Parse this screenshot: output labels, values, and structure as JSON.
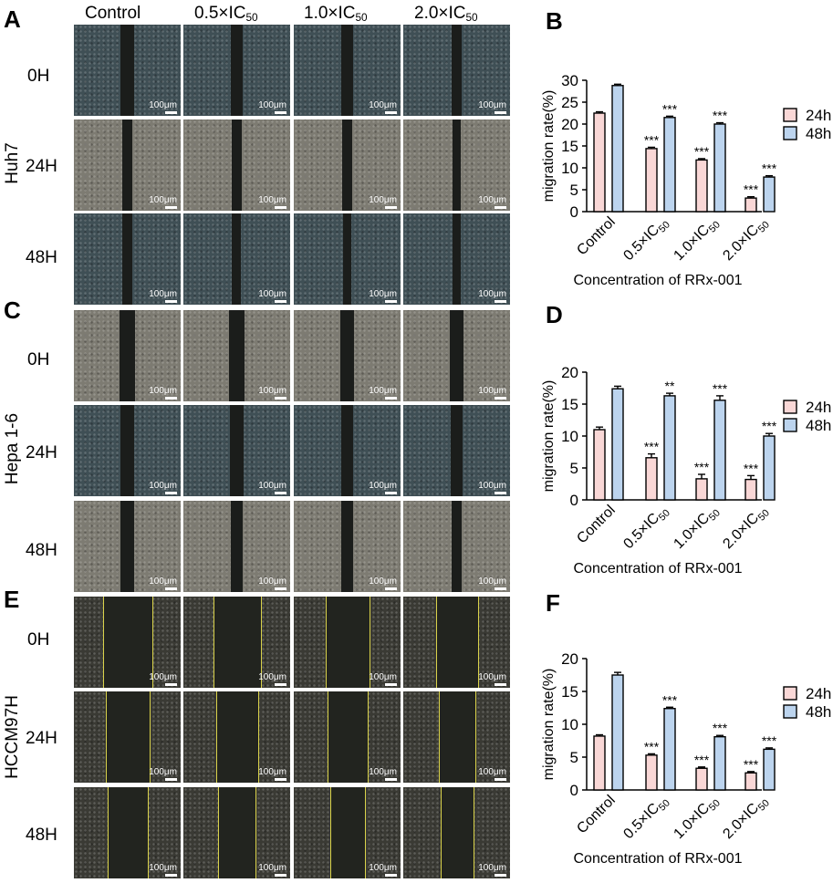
{
  "figure": {
    "panel_letters": [
      "A",
      "B",
      "C",
      "D",
      "E",
      "F"
    ],
    "column_headers": [
      "Control",
      "0.5×IC",
      "1.0×IC",
      "2.0×IC"
    ],
    "column_header_sub": "50",
    "cell_lines": [
      "Huh7",
      "Hepa 1-6",
      "HCCM97H"
    ],
    "time_points": [
      "0H",
      "24H",
      "48H"
    ],
    "scale_bar_label": "100μm",
    "colors": {
      "bar_24h": "#f9d7d6",
      "bar_48h": "#bcd4ee",
      "tissue_blue": "#3f4f55",
      "tissue_gray": "#7d7b72",
      "tissue_dark": "#3a3a34",
      "gap_dark": "#1b1d1b",
      "wound_line": "#d9d24a"
    }
  },
  "chart_data": [
    {
      "panel": "B",
      "type": "bar",
      "categories": [
        "Control",
        "0.5×IC",
        "1.0×IC",
        "2.0×IC"
      ],
      "category_sub": "50",
      "series": [
        {
          "name": "24h",
          "values": [
            22.5,
            14.4,
            11.8,
            3.1
          ],
          "errors": [
            0.3,
            0.3,
            0.3,
            0.3
          ],
          "sig": [
            "",
            "***",
            "***",
            "***"
          ]
        },
        {
          "name": "48h",
          "values": [
            28.8,
            21.5,
            20.0,
            7.9
          ],
          "errors": [
            0.3,
            0.3,
            0.3,
            0.3
          ],
          "sig": [
            "",
            "***",
            "***",
            "***"
          ]
        }
      ],
      "ylim": [
        0,
        30
      ],
      "yticks": [
        0,
        5,
        10,
        15,
        20,
        25,
        30
      ],
      "ylabel": "migration rate(%)",
      "xlabel": "Concentration of RRx-001"
    },
    {
      "panel": "D",
      "type": "bar",
      "categories": [
        "Control",
        "0.5×IC",
        "1.0×IC",
        "2.0×IC"
      ],
      "category_sub": "50",
      "series": [
        {
          "name": "24h",
          "values": [
            11.0,
            6.6,
            3.3,
            3.2
          ],
          "errors": [
            0.4,
            0.6,
            0.7,
            0.6
          ],
          "sig": [
            "",
            "***",
            "***",
            "***"
          ]
        },
        {
          "name": "48h",
          "values": [
            17.4,
            16.3,
            15.6,
            10.0
          ],
          "errors": [
            0.4,
            0.4,
            0.7,
            0.4
          ],
          "sig": [
            "",
            "**",
            "***",
            "***"
          ]
        }
      ],
      "ylim": [
        0,
        20
      ],
      "yticks": [
        0,
        5,
        10,
        15,
        20
      ],
      "ylabel": "migration rate(%)",
      "xlabel": "Concentration of RRx-001"
    },
    {
      "panel": "F",
      "type": "bar",
      "categories": [
        "Control",
        "0.5×IC",
        "1.0×IC",
        "2.0×IC"
      ],
      "category_sub": "50",
      "series": [
        {
          "name": "24h",
          "values": [
            8.2,
            5.3,
            3.3,
            2.6
          ],
          "errors": [
            0.2,
            0.2,
            0.2,
            0.2
          ],
          "sig": [
            "",
            "***",
            "***",
            "***"
          ]
        },
        {
          "name": "48h",
          "values": [
            17.5,
            12.4,
            8.1,
            6.2
          ],
          "errors": [
            0.4,
            0.2,
            0.2,
            0.2
          ],
          "sig": [
            "",
            "***",
            "***",
            "***"
          ]
        }
      ],
      "ylim": [
        0,
        20
      ],
      "yticks": [
        0,
        5,
        10,
        15,
        20
      ],
      "ylabel": "migration rate(%)",
      "xlabel": "Concentration of RRx-001"
    }
  ]
}
